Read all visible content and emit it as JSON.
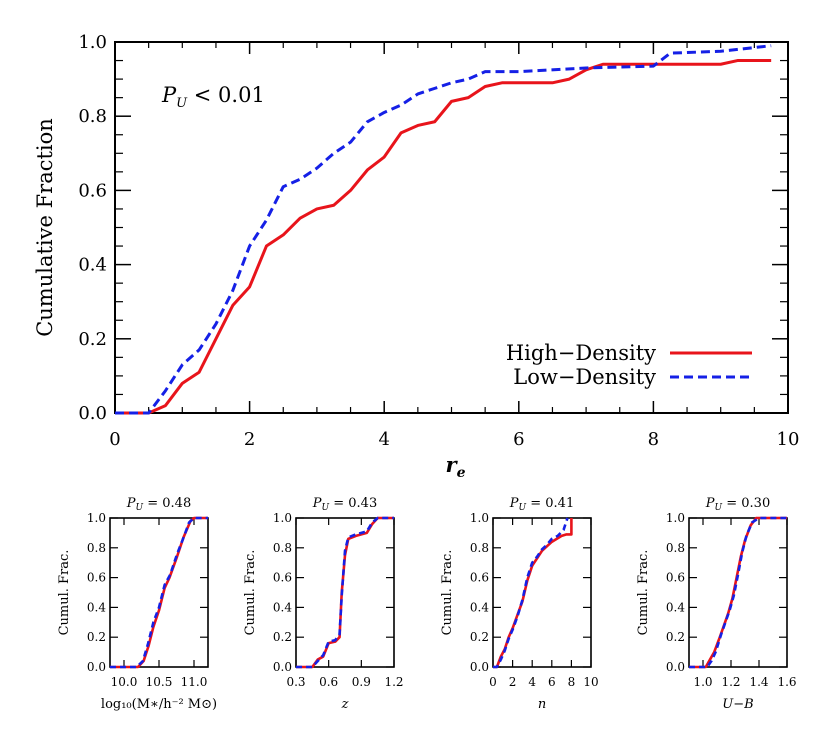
{
  "chart_data": [
    {
      "type": "line",
      "xlabel": "r",
      "xlabel_sub": "e",
      "ylabel": "Cumulative Fraction",
      "xlim": [
        0,
        10
      ],
      "ylim": [
        0,
        1.0
      ],
      "xticks": [
        "0",
        "2",
        "4",
        "6",
        "8",
        "10"
      ],
      "yticks": [
        "0.0",
        "0.2",
        "0.4",
        "0.6",
        "0.8",
        "1.0"
      ],
      "annotation": {
        "p": "P",
        "sub": "U",
        "rest": " < 0.01"
      },
      "legend": {
        "placement": "bottom-right"
      },
      "series": [
        {
          "name": "High−Density",
          "color": "#e8141b",
          "dash": "solid",
          "points": [
            [
              0,
              0
            ],
            [
              0.5,
              0
            ],
            [
              0.75,
              0.02
            ],
            [
              1.0,
              0.08
            ],
            [
              1.25,
              0.11
            ],
            [
              1.5,
              0.2
            ],
            [
              1.75,
              0.29
            ],
            [
              2.0,
              0.34
            ],
            [
              2.25,
              0.45
            ],
            [
              2.5,
              0.48
            ],
            [
              2.75,
              0.525
            ],
            [
              3.0,
              0.55
            ],
            [
              3.25,
              0.56
            ],
            [
              3.5,
              0.6
            ],
            [
              3.75,
              0.655
            ],
            [
              4.0,
              0.69
            ],
            [
              4.25,
              0.755
            ],
            [
              4.5,
              0.775
            ],
            [
              4.75,
              0.785
            ],
            [
              5.0,
              0.84
            ],
            [
              5.25,
              0.85
            ],
            [
              5.5,
              0.88
            ],
            [
              5.75,
              0.89
            ],
            [
              6.0,
              0.89
            ],
            [
              6.5,
              0.89
            ],
            [
              6.75,
              0.9
            ],
            [
              7.0,
              0.925
            ],
            [
              7.25,
              0.94
            ],
            [
              8.0,
              0.94
            ],
            [
              9.0,
              0.94
            ],
            [
              9.25,
              0.95
            ],
            [
              9.75,
              0.95
            ]
          ]
        },
        {
          "name": "Low−Density",
          "color": "#1520e6",
          "dash": "dashed",
          "points": [
            [
              0,
              0
            ],
            [
              0.5,
              0
            ],
            [
              0.75,
              0.06
            ],
            [
              1.0,
              0.13
            ],
            [
              1.25,
              0.17
            ],
            [
              1.5,
              0.24
            ],
            [
              1.75,
              0.33
            ],
            [
              2.0,
              0.45
            ],
            [
              2.25,
              0.52
            ],
            [
              2.5,
              0.61
            ],
            [
              2.75,
              0.63
            ],
            [
              3.0,
              0.66
            ],
            [
              3.25,
              0.7
            ],
            [
              3.5,
              0.73
            ],
            [
              3.75,
              0.785
            ],
            [
              4.0,
              0.81
            ],
            [
              4.25,
              0.83
            ],
            [
              4.5,
              0.86
            ],
            [
              4.75,
              0.875
            ],
            [
              5.0,
              0.89
            ],
            [
              5.25,
              0.9
            ],
            [
              5.5,
              0.92
            ],
            [
              6.0,
              0.92
            ],
            [
              7.0,
              0.93
            ],
            [
              8.0,
              0.935
            ],
            [
              8.25,
              0.97
            ],
            [
              9.0,
              0.975
            ],
            [
              9.5,
              0.985
            ],
            [
              9.75,
              0.99
            ]
          ]
        }
      ]
    },
    {
      "type": "line",
      "title": {
        "p": "P",
        "sub": "U",
        "rest": " = 0.48"
      },
      "ylabel": "Cumul. Frac.",
      "xlabel": "log₁₀(M∗/h⁻² M⊙)",
      "xlim": [
        9.8,
        11.2
      ],
      "ylim": [
        0,
        1.0
      ],
      "xticks": [
        {
          "v": 10.0,
          "t": "10.0"
        },
        {
          "v": 10.5,
          "t": "10.5"
        },
        {
          "v": 11.0,
          "t": "11.0"
        }
      ],
      "yticks": [
        "0.0",
        "0.2",
        "0.4",
        "0.6",
        "0.8",
        "1.0"
      ],
      "series": [
        {
          "color": "#e8141b",
          "dash": "solid",
          "points": [
            [
              9.8,
              0
            ],
            [
              10.2,
              0
            ],
            [
              10.28,
              0.04
            ],
            [
              10.35,
              0.14
            ],
            [
              10.42,
              0.27
            ],
            [
              10.5,
              0.38
            ],
            [
              10.58,
              0.53
            ],
            [
              10.65,
              0.6
            ],
            [
              10.75,
              0.73
            ],
            [
              10.85,
              0.87
            ],
            [
              10.95,
              0.98
            ],
            [
              11.0,
              1.0
            ],
            [
              11.2,
              1.0
            ]
          ]
        },
        {
          "color": "#1520e6",
          "dash": "dashed",
          "points": [
            [
              9.8,
              0
            ],
            [
              10.18,
              0
            ],
            [
              10.27,
              0.04
            ],
            [
              10.34,
              0.15
            ],
            [
              10.42,
              0.3
            ],
            [
              10.5,
              0.4
            ],
            [
              10.58,
              0.55
            ],
            [
              10.66,
              0.62
            ],
            [
              10.76,
              0.76
            ],
            [
              10.86,
              0.88
            ],
            [
              10.93,
              0.97
            ],
            [
              11.0,
              1.0
            ],
            [
              11.2,
              1.0
            ]
          ]
        }
      ]
    },
    {
      "type": "line",
      "title": {
        "p": "P",
        "sub": "U",
        "rest": " = 0.43"
      },
      "ylabel": "Cumul. Frac.",
      "xlabel": "z",
      "xlim": [
        0.3,
        1.2
      ],
      "ylim": [
        0,
        1.0
      ],
      "xticks": [
        {
          "v": 0.3,
          "t": "0.3"
        },
        {
          "v": 0.6,
          "t": "0.6"
        },
        {
          "v": 0.9,
          "t": "0.9"
        },
        {
          "v": 1.2,
          "t": "1.2"
        }
      ],
      "yticks": [
        "0.0",
        "0.2",
        "0.4",
        "0.6",
        "0.8",
        "1.0"
      ],
      "series": [
        {
          "color": "#e8141b",
          "dash": "solid",
          "points": [
            [
              0.3,
              0
            ],
            [
              0.45,
              0
            ],
            [
              0.5,
              0.05
            ],
            [
              0.55,
              0.07
            ],
            [
              0.6,
              0.16
            ],
            [
              0.66,
              0.17
            ],
            [
              0.7,
              0.2
            ],
            [
              0.72,
              0.5
            ],
            [
              0.75,
              0.75
            ],
            [
              0.78,
              0.86
            ],
            [
              0.85,
              0.88
            ],
            [
              0.95,
              0.9
            ],
            [
              1.0,
              0.96
            ],
            [
              1.05,
              1.0
            ],
            [
              1.2,
              1.0
            ]
          ]
        },
        {
          "color": "#1520e6",
          "dash": "dashed",
          "points": [
            [
              0.3,
              0
            ],
            [
              0.45,
              0
            ],
            [
              0.5,
              0.04
            ],
            [
              0.55,
              0.08
            ],
            [
              0.6,
              0.17
            ],
            [
              0.66,
              0.18
            ],
            [
              0.7,
              0.22
            ],
            [
              0.72,
              0.48
            ],
            [
              0.75,
              0.78
            ],
            [
              0.78,
              0.87
            ],
            [
              0.85,
              0.89
            ],
            [
              0.95,
              0.91
            ],
            [
              1.0,
              0.97
            ],
            [
              1.05,
              1.0
            ],
            [
              1.2,
              1.0
            ]
          ]
        }
      ]
    },
    {
      "type": "line",
      "title": {
        "p": "P",
        "sub": "U",
        "rest": " = 0.41"
      },
      "ylabel": "Cumul. Frac.",
      "xlabel": "n",
      "xlim": [
        0,
        10
      ],
      "ylim": [
        0,
        1.0
      ],
      "xticks": [
        {
          "v": 0,
          "t": "0"
        },
        {
          "v": 2,
          "t": "2"
        },
        {
          "v": 4,
          "t": "4"
        },
        {
          "v": 6,
          "t": "6"
        },
        {
          "v": 8,
          "t": "8"
        },
        {
          "v": 10,
          "t": "10"
        }
      ],
      "yticks": [
        "0.0",
        "0.2",
        "0.4",
        "0.6",
        "0.8",
        "1.0"
      ],
      "series": [
        {
          "color": "#e8141b",
          "dash": "solid",
          "points": [
            [
              0,
              0
            ],
            [
              0.4,
              0
            ],
            [
              0.8,
              0.07
            ],
            [
              1.2,
              0.12
            ],
            [
              1.6,
              0.2
            ],
            [
              2.0,
              0.26
            ],
            [
              2.5,
              0.35
            ],
            [
              3.0,
              0.44
            ],
            [
              3.5,
              0.58
            ],
            [
              4.0,
              0.68
            ],
            [
              4.5,
              0.73
            ],
            [
              5.0,
              0.78
            ],
            [
              5.5,
              0.81
            ],
            [
              6.0,
              0.84
            ],
            [
              7.0,
              0.88
            ],
            [
              7.5,
              0.89
            ],
            [
              8.0,
              0.89
            ],
            [
              8.0,
              1.0
            ]
          ]
        },
        {
          "color": "#1520e6",
          "dash": "dashed",
          "points": [
            [
              0,
              0
            ],
            [
              0.4,
              0
            ],
            [
              0.8,
              0.05
            ],
            [
              1.2,
              0.11
            ],
            [
              1.6,
              0.19
            ],
            [
              2.0,
              0.25
            ],
            [
              2.5,
              0.34
            ],
            [
              3.0,
              0.45
            ],
            [
              3.5,
              0.6
            ],
            [
              4.0,
              0.7
            ],
            [
              4.5,
              0.74
            ],
            [
              5.0,
              0.79
            ],
            [
              5.5,
              0.82
            ],
            [
              6.0,
              0.86
            ],
            [
              6.6,
              0.88
            ],
            [
              7.2,
              0.92
            ],
            [
              7.6,
              1.0
            ]
          ]
        }
      ]
    },
    {
      "type": "line",
      "title": {
        "p": "P",
        "sub": "U",
        "rest": " = 0.30"
      },
      "ylabel": "Cumul. Frac.",
      "xlabel": "U−B",
      "xlim": [
        0.9,
        1.6
      ],
      "ylim": [
        0,
        1.0
      ],
      "xticks": [
        {
          "v": 1.0,
          "t": "1.0"
        },
        {
          "v": 1.2,
          "t": "1.2"
        },
        {
          "v": 1.4,
          "t": "1.4"
        },
        {
          "v": 1.6,
          "t": "1.6"
        }
      ],
      "yticks": [
        "0.0",
        "0.2",
        "0.4",
        "0.6",
        "0.8",
        "1.0"
      ],
      "series": [
        {
          "color": "#e8141b",
          "dash": "solid",
          "points": [
            [
              0.9,
              0
            ],
            [
              1.02,
              0
            ],
            [
              1.05,
              0.05
            ],
            [
              1.08,
              0.1
            ],
            [
              1.12,
              0.2
            ],
            [
              1.15,
              0.28
            ],
            [
              1.18,
              0.36
            ],
            [
              1.21,
              0.46
            ],
            [
              1.24,
              0.6
            ],
            [
              1.27,
              0.74
            ],
            [
              1.3,
              0.85
            ],
            [
              1.34,
              0.95
            ],
            [
              1.38,
              1.0
            ],
            [
              1.6,
              1.0
            ]
          ]
        },
        {
          "color": "#1520e6",
          "dash": "dashed",
          "points": [
            [
              0.9,
              0
            ],
            [
              1.03,
              0
            ],
            [
              1.06,
              0.04
            ],
            [
              1.09,
              0.1
            ],
            [
              1.13,
              0.22
            ],
            [
              1.16,
              0.3
            ],
            [
              1.19,
              0.38
            ],
            [
              1.22,
              0.48
            ],
            [
              1.25,
              0.62
            ],
            [
              1.28,
              0.77
            ],
            [
              1.31,
              0.88
            ],
            [
              1.35,
              0.97
            ],
            [
              1.4,
              1.0
            ],
            [
              1.6,
              1.0
            ]
          ]
        }
      ]
    }
  ]
}
